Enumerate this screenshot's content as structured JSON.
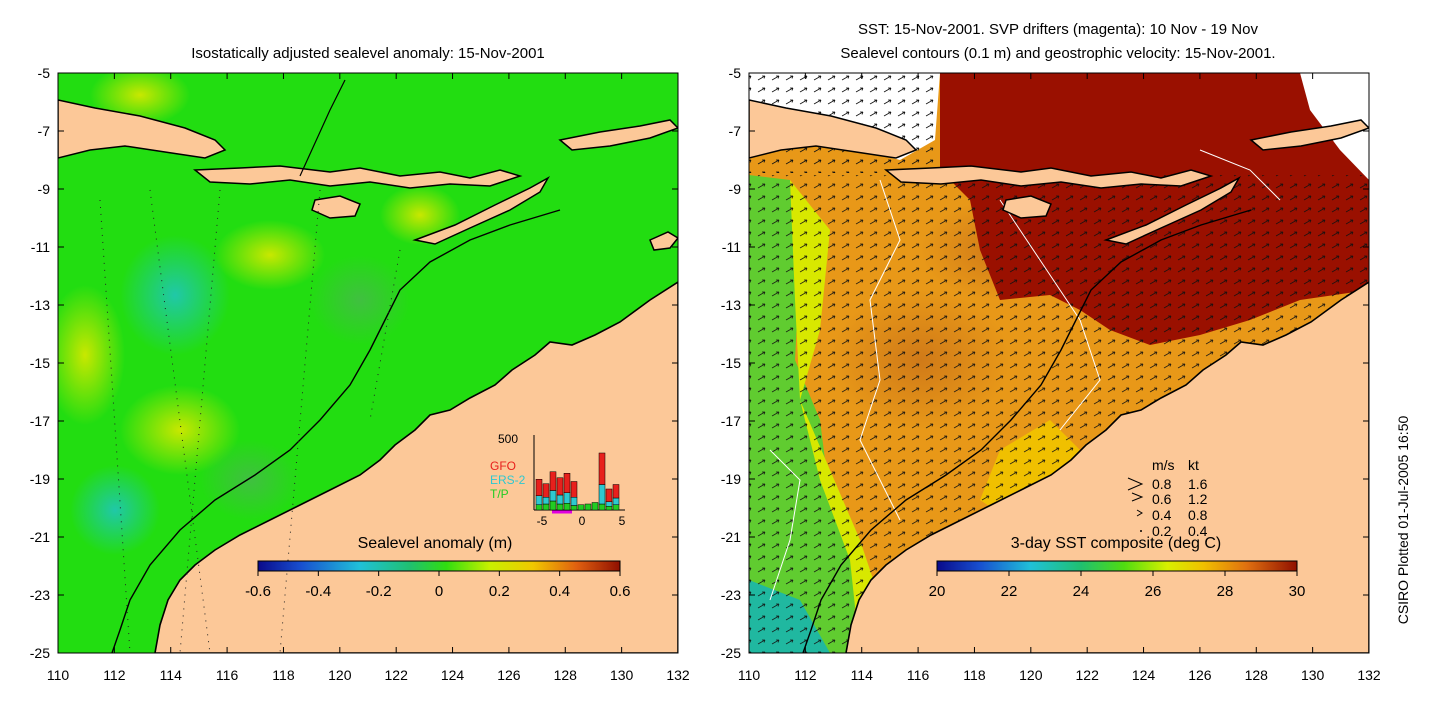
{
  "left_panel": {
    "title": "Isostatically adjusted sealevel anomaly: 15-Nov-2001",
    "colorbar": {
      "label": "Sealevel anomaly (m)",
      "ticks": [
        "-0.6",
        "-0.4",
        "-0.2",
        "0",
        "0.2",
        "0.4",
        "0.6"
      ]
    },
    "inset": {
      "ymax_label": "500",
      "legend": [
        {
          "name": "GFO",
          "color": "#e8201c"
        },
        {
          "name": "ERS-2",
          "color": "#2ec8d0"
        },
        {
          "name": "T/P",
          "color": "#22cc22"
        }
      ],
      "x_ticks": [
        "-5",
        "0",
        "5"
      ],
      "bars_tp": [
        35,
        40,
        60,
        40,
        45,
        30,
        35,
        40,
        50,
        40,
        25,
        35
      ],
      "bars_ers": [
        60,
        45,
        70,
        60,
        70,
        55,
        0,
        0,
        0,
        130,
        30,
        45
      ],
      "bars_gfo": [
        110,
        90,
        125,
        115,
        130,
        105,
        0,
        0,
        0,
        210,
        85,
        90
      ]
    }
  },
  "right_panel": {
    "title_line1": "SST: 15-Nov-2001. SVP drifters (magenta): 10 Nov - 19 Nov",
    "title_line2": "Sealevel contours (0.1 m) and geostrophic velocity: 15-Nov-2001.",
    "colorbar": {
      "label": "3-day SST composite (deg C)",
      "ticks": [
        "20",
        "22",
        "24",
        "26",
        "28",
        "30"
      ]
    },
    "velocity_legend": {
      "header_ms": "m/s",
      "header_kt": "kt",
      "rows": [
        {
          "ms": "0.8",
          "kt": "1.6"
        },
        {
          "ms": "0.6",
          "kt": "1.2"
        },
        {
          "ms": "0.4",
          "kt": "0.8"
        },
        {
          "ms": "0.2",
          "kt": "0.4"
        }
      ]
    }
  },
  "axes": {
    "lat_ticks": [
      "-5",
      "-7",
      "-9",
      "-11",
      "-13",
      "-15",
      "-17",
      "-19",
      "-21",
      "-23",
      "-25"
    ],
    "lon_ticks": [
      "110",
      "112",
      "114",
      "116",
      "118",
      "120",
      "122",
      "124",
      "126",
      "128",
      "130",
      "132"
    ]
  },
  "credit": "CSIRO Plotted 01-Jul-2005 16:50",
  "colors": {
    "land": "#fcc898",
    "ocean_left": "#22dd11",
    "sst_hot": "#9a1000",
    "coast": "#000000"
  }
}
